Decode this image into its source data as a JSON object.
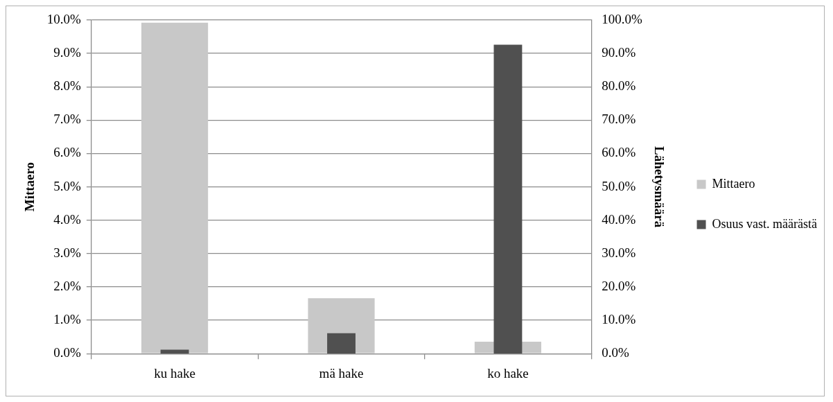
{
  "chart_data": {
    "type": "bar",
    "categories": [
      "ku hake",
      "mä hake",
      "ko hake"
    ],
    "ylabel": "Mittaero",
    "y2label": "Lähetysmäärä",
    "series": [
      {
        "name": "Mittaero",
        "color": "#c8c8c8",
        "values": [
          9.92,
          1.66,
          0.36
        ]
      },
      {
        "name": "Osuus vast. määrästä",
        "color": "#505050",
        "values": [
          1.2,
          6.1,
          92.6
        ],
        "axis": "y2"
      }
    ],
    "ylim": [
      0,
      10
    ],
    "yticks": [
      {
        "value": 0,
        "label": "0.0%"
      },
      {
        "value": 1,
        "label": "1.0%"
      },
      {
        "value": 2,
        "label": "2.0%"
      },
      {
        "value": 3,
        "label": "3.0%"
      },
      {
        "value": 4,
        "label": "4.0%"
      },
      {
        "value": 5,
        "label": "5.0%"
      },
      {
        "value": 6,
        "label": "6.0%"
      },
      {
        "value": 7,
        "label": "7.0%"
      },
      {
        "value": 8,
        "label": "8.0%"
      },
      {
        "value": 9,
        "label": "9.0%"
      },
      {
        "value": 10,
        "label": "10.0%"
      }
    ],
    "y2lim": [
      0,
      100
    ],
    "y2ticks": [
      {
        "value": 0,
        "label": "0.0%"
      },
      {
        "value": 10,
        "label": "10.0%"
      },
      {
        "value": 20,
        "label": "20.0%"
      },
      {
        "value": 30,
        "label": "30.0%"
      },
      {
        "value": 40,
        "label": "40.0%"
      },
      {
        "value": 50,
        "label": "50.0%"
      },
      {
        "value": 60,
        "label": "60.0%"
      },
      {
        "value": 70,
        "label": "70.0%"
      },
      {
        "value": 80,
        "label": "80.0%"
      },
      {
        "value": 90,
        "label": "90.0%"
      },
      {
        "value": 100,
        "label": "100.0%"
      }
    ],
    "grid": "y",
    "legend": "right"
  }
}
